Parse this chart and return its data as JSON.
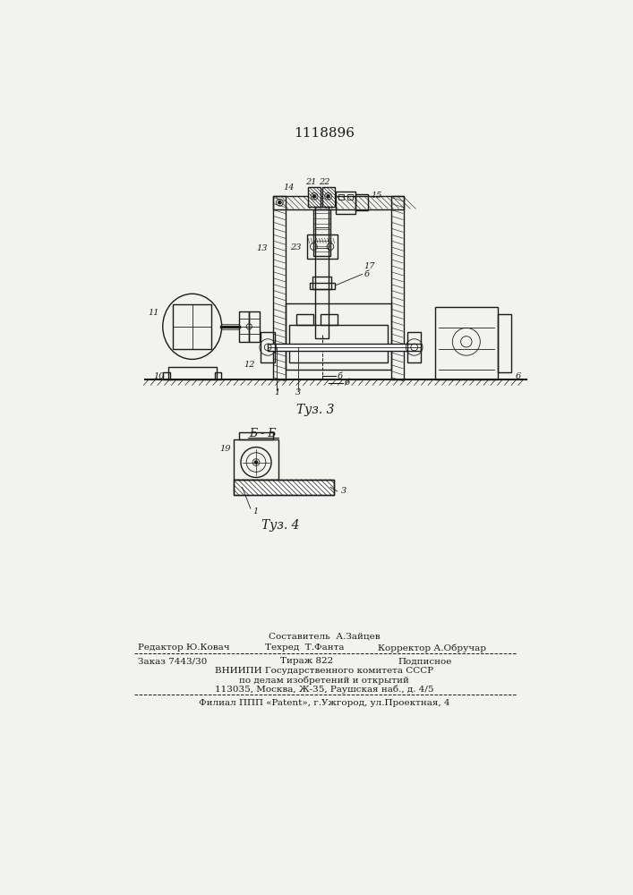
{
  "patent_number": "1118896",
  "paper_color": "#f2f2ee",
  "line_color": "#1a1a1a",
  "fig3_caption": "Τуз. 3",
  "fig4_caption": "Τуз. 4",
  "section_label": "Б - Б",
  "footer": {
    "col2_row1": "Составитель  А.Зайцев",
    "col1_row2": "Редактор Ю.Ковач",
    "col2_row2": "Техред  Т.Фанта",
    "col3_row2": "Корректор А.Обручар",
    "order": "Заказ 7443/30",
    "tirazh": "Тираж 822",
    "podp": "Подписное",
    "vniip1": "ВНИИПИ Государственного комитета СССР",
    "vniip2": "по делам изобретений и открытий",
    "address": "113035, Москва, Ж-35, Раушская наб., д. 4/5",
    "filial": "Филиал ППП «Patent», г.Ужгород, ул.Проектная, 4"
  }
}
